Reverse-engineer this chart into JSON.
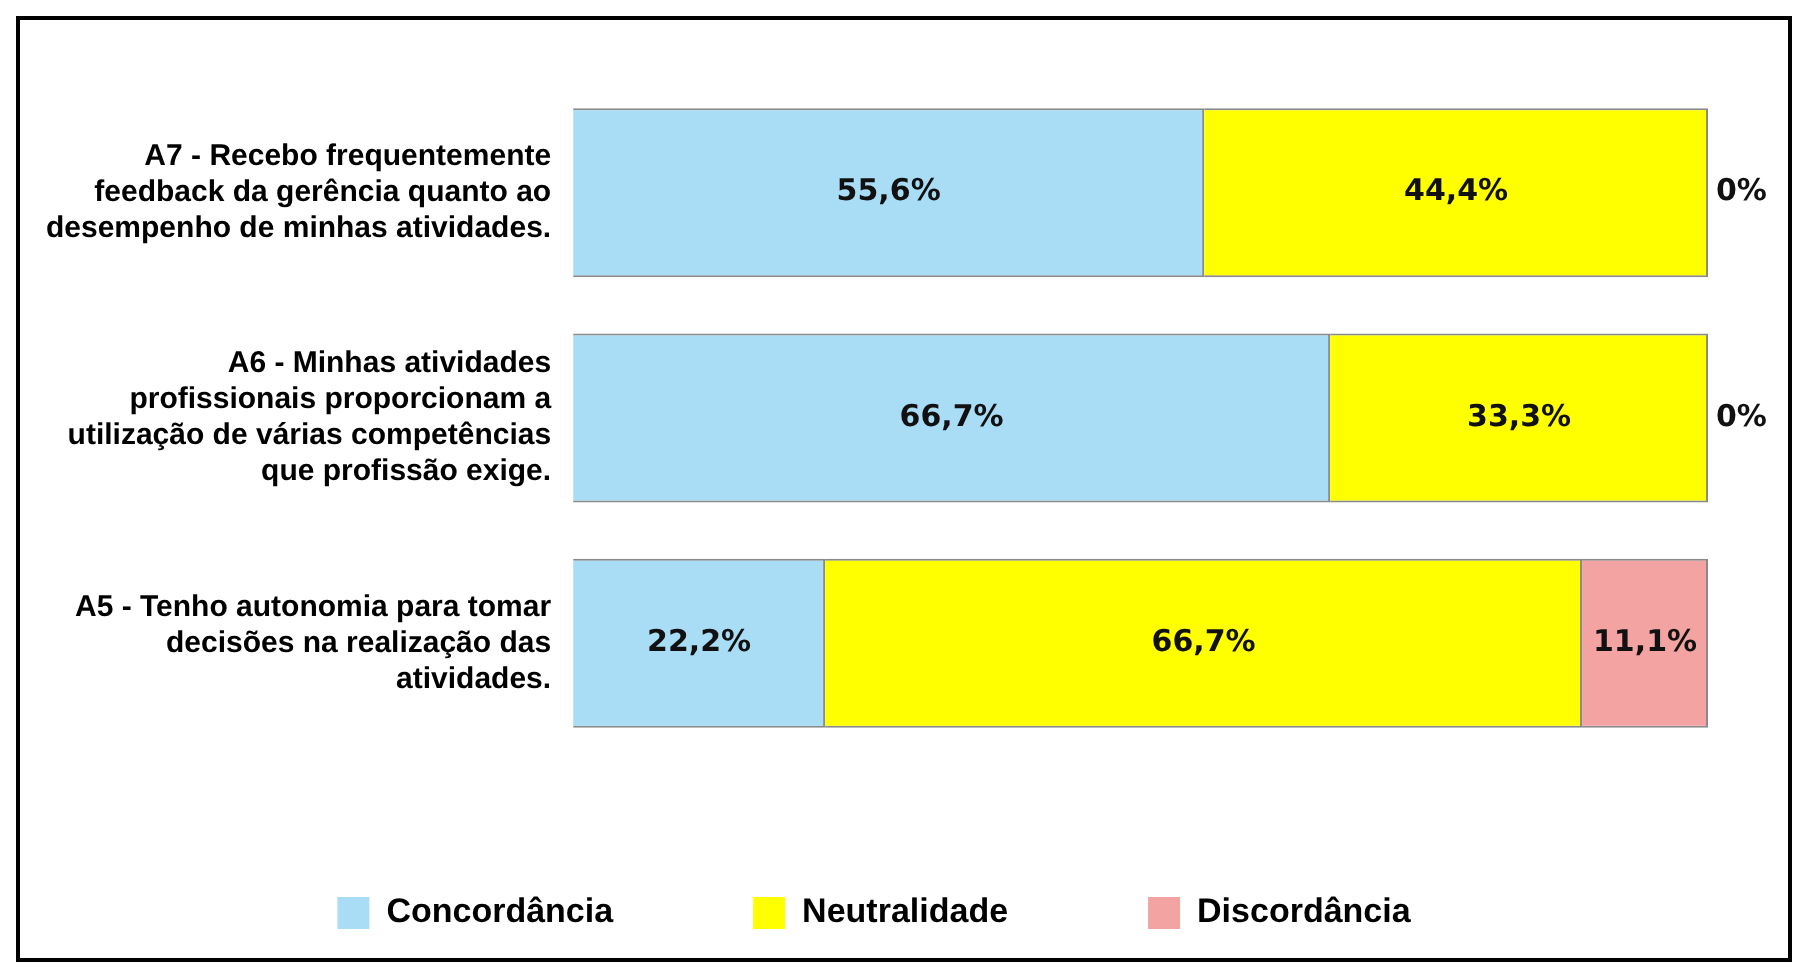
{
  "chart_data": {
    "type": "bar",
    "orientation": "horizontal",
    "stacked": true,
    "legend": "bottom",
    "categories": [
      "A7 - Recebo frequentemente feedback da gerência quanto ao desempenho de minhas atividades.",
      "A6 - Minhas atividades profissionais proporcionam a utilização de várias competências que profissão exige.",
      "A5 - Tenho autonomia para tomar decisões na realização das atividades."
    ],
    "series": [
      {
        "name": "Concordância",
        "color": "#a9dcf5",
        "values": [
          55.6,
          66.7,
          22.2
        ],
        "value_labels": [
          "55,6%",
          "66,7%",
          "22,2%"
        ]
      },
      {
        "name": "Neutralidade",
        "color": "#ffff00",
        "values": [
          44.4,
          33.3,
          66.7
        ],
        "value_labels": [
          "44,4%",
          "33,3%",
          "66,7%"
        ]
      },
      {
        "name": "Discordância",
        "color": "#f4a3a3",
        "values": [
          0,
          0,
          11.1
        ],
        "value_labels": [
          "0%",
          "0%",
          "11,1%"
        ]
      }
    ]
  }
}
